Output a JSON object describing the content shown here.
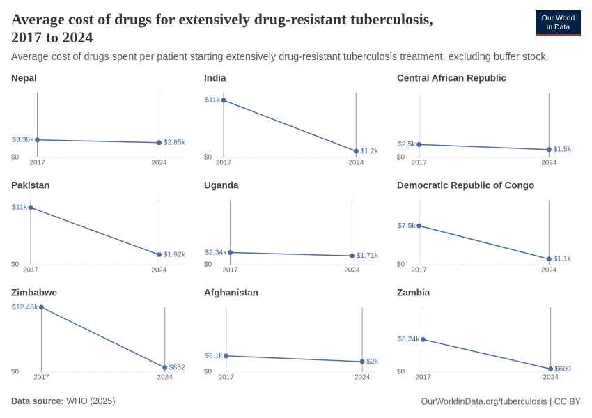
{
  "title": "Average cost of drugs for extensively drug-resistant tuberculosis, 2017 to 2024",
  "subtitle": "Average cost of drugs spent per patient starting extensively drug-resistant tuberculosis treatment, excluding buffer stock.",
  "logo": [
    "Our World",
    "in Data"
  ],
  "source_label": "Data source:",
  "source": "WHO (2025)",
  "url": "OurWorldinData.org/tuberculosis | CC BY",
  "chart_data": [
    {
      "type": "line",
      "title": "Nepal",
      "categories": [
        "2017",
        "2024"
      ],
      "values": [
        3380,
        2850
      ],
      "value_labels": [
        "$3.38k",
        "$2.85k"
      ],
      "color": "#4c6a9c",
      "ylim": [
        0,
        12460
      ],
      "yticks": [
        {
          "value": 0,
          "label": "$0"
        }
      ]
    },
    {
      "type": "line",
      "title": "India",
      "categories": [
        "2017",
        "2024"
      ],
      "values": [
        11000,
        1200
      ],
      "value_labels": [
        "$11k",
        "$1.2k"
      ],
      "color": "#4c6a9c",
      "ylim": [
        0,
        12460
      ],
      "yticks": [
        {
          "value": 0,
          "label": "$0"
        }
      ]
    },
    {
      "type": "line",
      "title": "Central African Republic",
      "categories": [
        "2017",
        "2024"
      ],
      "values": [
        2500,
        1500
      ],
      "value_labels": [
        "$2.5k",
        "$1.5k"
      ],
      "color": "#4c6a9c",
      "ylim": [
        0,
        12460
      ],
      "yticks": [
        {
          "value": 0,
          "label": "$0"
        }
      ]
    },
    {
      "type": "line",
      "title": "Pakistan",
      "categories": [
        "2017",
        "2024"
      ],
      "values": [
        11000,
        1920
      ],
      "value_labels": [
        "$11k",
        "$1.92k"
      ],
      "color": "#4c6a9c",
      "ylim": [
        0,
        12460
      ],
      "yticks": [
        {
          "value": 0,
          "label": "$0"
        }
      ]
    },
    {
      "type": "line",
      "title": "Uganda",
      "categories": [
        "2017",
        "2024"
      ],
      "values": [
        2340,
        1710
      ],
      "value_labels": [
        "$2.34k",
        "$1.71k"
      ],
      "color": "#4c6a9c",
      "ylim": [
        0,
        12460
      ],
      "yticks": [
        {
          "value": 0,
          "label": "$0"
        }
      ]
    },
    {
      "type": "line",
      "title": "Democratic Republic of Congo",
      "categories": [
        "2017",
        "2024"
      ],
      "values": [
        7500,
        1100
      ],
      "value_labels": [
        "$7.5k",
        "$1.1k"
      ],
      "color": "#4c6a9c",
      "ylim": [
        0,
        12460
      ],
      "yticks": [
        {
          "value": 0,
          "label": "$0"
        }
      ]
    },
    {
      "type": "line",
      "title": "Zimbabwe",
      "categories": [
        "2017",
        "2024"
      ],
      "values": [
        12460,
        852
      ],
      "value_labels": [
        "$12.46k",
        "$852"
      ],
      "color": "#4c6a9c",
      "ylim": [
        0,
        12460
      ],
      "yticks": [
        {
          "value": 0,
          "label": "$0"
        }
      ]
    },
    {
      "type": "line",
      "title": "Afghanistan",
      "categories": [
        "2017",
        "2024"
      ],
      "values": [
        3100,
        2000
      ],
      "value_labels": [
        "$3.1k",
        "$2k"
      ],
      "color": "#4c6a9c",
      "ylim": [
        0,
        12460
      ],
      "yticks": [
        {
          "value": 0,
          "label": "$0"
        }
      ]
    },
    {
      "type": "line",
      "title": "Zambia",
      "categories": [
        "2017",
        "2024"
      ],
      "values": [
        6240,
        600
      ],
      "value_labels": [
        "$6.24k",
        "$600"
      ],
      "color": "#4c6a9c",
      "ylim": [
        0,
        12460
      ],
      "yticks": [
        {
          "value": 0,
          "label": "$0"
        }
      ]
    }
  ]
}
